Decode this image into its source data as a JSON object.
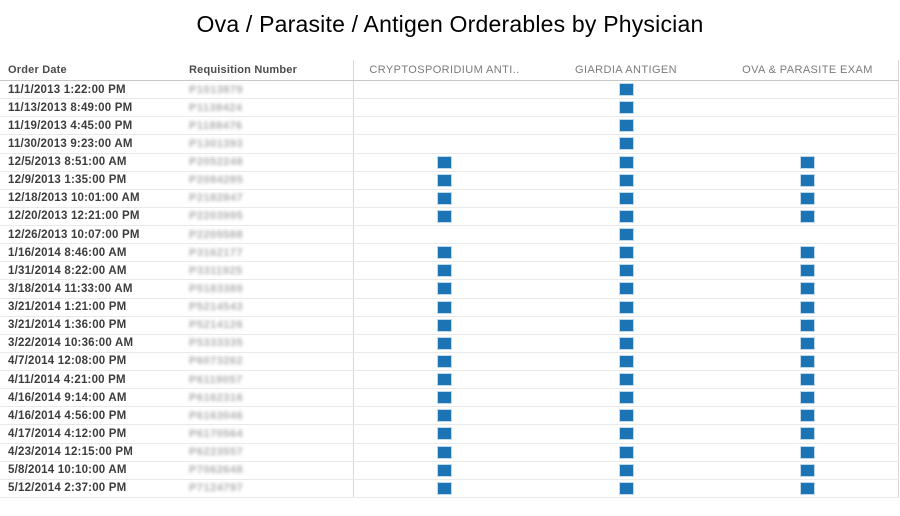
{
  "chart_data": {
    "type": "table",
    "title": "Ova / Parasite / Antigen Orderables by Physician",
    "columns": [
      "Order Date",
      "Requisition Number",
      "CRYPTOSPORIDIUM ANTI..",
      "GIARDIA ANTIGEN",
      "OVA & PARASITE EXAM"
    ],
    "mark_color": "#1c74b4",
    "mark_legend": "blue square = test ordered",
    "rows": [
      {
        "order_date": "11/1/2013 1:22:00 PM",
        "requisition_number": "P1013879",
        "cryptosporidium_antigen": false,
        "giardia_antigen": true,
        "ova_parasite_exam": false
      },
      {
        "order_date": "11/13/2013 8:49:00 PM",
        "requisition_number": "P1138424",
        "cryptosporidium_antigen": false,
        "giardia_antigen": true,
        "ova_parasite_exam": false
      },
      {
        "order_date": "11/19/2013 4:45:00 PM",
        "requisition_number": "P1188476",
        "cryptosporidium_antigen": false,
        "giardia_antigen": true,
        "ova_parasite_exam": false
      },
      {
        "order_date": "11/30/2013 9:23:00 AM",
        "requisition_number": "P1301393",
        "cryptosporidium_antigen": false,
        "giardia_antigen": true,
        "ova_parasite_exam": false
      },
      {
        "order_date": "12/5/2013 8:51:00 AM",
        "requisition_number": "P2052248",
        "cryptosporidium_antigen": true,
        "giardia_antigen": true,
        "ova_parasite_exam": true
      },
      {
        "order_date": "12/9/2013 1:35:00 PM",
        "requisition_number": "P2084285",
        "cryptosporidium_antigen": true,
        "giardia_antigen": true,
        "ova_parasite_exam": true
      },
      {
        "order_date": "12/18/2013 10:01:00 AM",
        "requisition_number": "P2182847",
        "cryptosporidium_antigen": true,
        "giardia_antigen": true,
        "ova_parasite_exam": true
      },
      {
        "order_date": "12/20/2013 12:21:00 PM",
        "requisition_number": "P2203995",
        "cryptosporidium_antigen": true,
        "giardia_antigen": true,
        "ova_parasite_exam": true
      },
      {
        "order_date": "12/26/2013 10:07:00 PM",
        "requisition_number": "P2205588",
        "cryptosporidium_antigen": false,
        "giardia_antigen": true,
        "ova_parasite_exam": false
      },
      {
        "order_date": "1/16/2014 8:46:00 AM",
        "requisition_number": "P3162177",
        "cryptosporidium_antigen": true,
        "giardia_antigen": true,
        "ova_parasite_exam": true
      },
      {
        "order_date": "1/31/2014 8:22:00 AM",
        "requisition_number": "P3311925",
        "cryptosporidium_antigen": true,
        "giardia_antigen": true,
        "ova_parasite_exam": true
      },
      {
        "order_date": "3/18/2014 11:33:00 AM",
        "requisition_number": "P5183389",
        "cryptosporidium_antigen": true,
        "giardia_antigen": true,
        "ova_parasite_exam": true
      },
      {
        "order_date": "3/21/2014 1:21:00 PM",
        "requisition_number": "P5214543",
        "cryptosporidium_antigen": true,
        "giardia_antigen": true,
        "ova_parasite_exam": true
      },
      {
        "order_date": "3/21/2014 1:36:00 PM",
        "requisition_number": "P5214126",
        "cryptosporidium_antigen": true,
        "giardia_antigen": true,
        "ova_parasite_exam": true
      },
      {
        "order_date": "3/22/2014 10:36:00 AM",
        "requisition_number": "P5333335",
        "cryptosporidium_antigen": true,
        "giardia_antigen": true,
        "ova_parasite_exam": true
      },
      {
        "order_date": "4/7/2014 12:08:00 PM",
        "requisition_number": "P6073262",
        "cryptosporidium_antigen": true,
        "giardia_antigen": true,
        "ova_parasite_exam": true
      },
      {
        "order_date": "4/11/2014 4:21:00 PM",
        "requisition_number": "P6119057",
        "cryptosporidium_antigen": true,
        "giardia_antigen": true,
        "ova_parasite_exam": true
      },
      {
        "order_date": "4/16/2014 9:14:00 AM",
        "requisition_number": "P6162316",
        "cryptosporidium_antigen": true,
        "giardia_antigen": true,
        "ova_parasite_exam": true
      },
      {
        "order_date": "4/16/2014 4:56:00 PM",
        "requisition_number": "P6163046",
        "cryptosporidium_antigen": true,
        "giardia_antigen": true,
        "ova_parasite_exam": true
      },
      {
        "order_date": "4/17/2014 4:12:00 PM",
        "requisition_number": "P6170564",
        "cryptosporidium_antigen": true,
        "giardia_antigen": true,
        "ova_parasite_exam": true
      },
      {
        "order_date": "4/23/2014 12:15:00 PM",
        "requisition_number": "P6223557",
        "cryptosporidium_antigen": true,
        "giardia_antigen": true,
        "ova_parasite_exam": true
      },
      {
        "order_date": "5/8/2014 10:10:00 AM",
        "requisition_number": "P7062648",
        "cryptosporidium_antigen": true,
        "giardia_antigen": true,
        "ova_parasite_exam": true
      },
      {
        "order_date": "5/12/2014 2:37:00 PM",
        "requisition_number": "P7124797",
        "cryptosporidium_antigen": true,
        "giardia_antigen": true,
        "ova_parasite_exam": true
      }
    ]
  }
}
